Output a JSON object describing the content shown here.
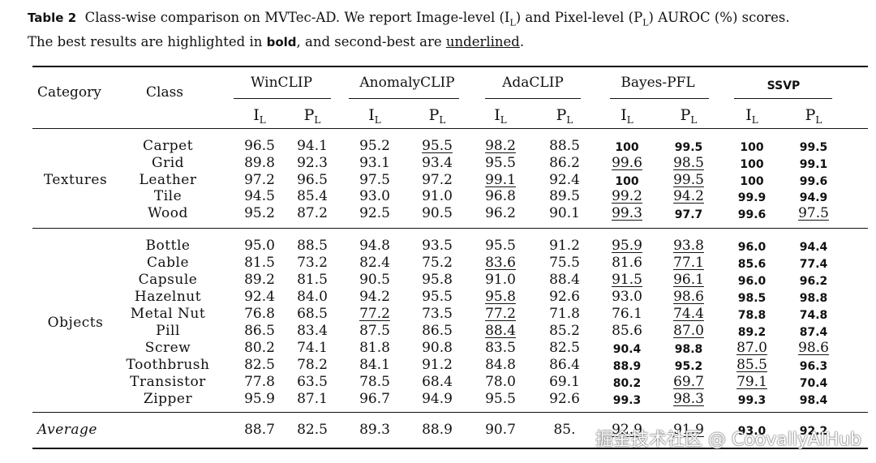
{
  "caption": {
    "label": "Table 2",
    "text_a": "Class-wise comparison on MVTec-AD. We report Image-level (I",
    "sub_l": "L",
    "text_b": ") and Pixel-level (P",
    "text_c": ") AUROC (%) scores.",
    "text_d": "The best results are highlighted in ",
    "bold_word": "bold",
    "text_e": ", and second-best are ",
    "underline_word": "underlined",
    "text_f": "."
  },
  "table": {
    "header_category": "Category",
    "header_class": "Class",
    "methods": [
      {
        "name": "WinCLIP",
        "bold": false
      },
      {
        "name": "AnomalyCLIP",
        "bold": false
      },
      {
        "name": "AdaCLIP",
        "bold": false
      },
      {
        "name": "Bayes-PFL",
        "bold": false
      },
      {
        "name": "SSVP",
        "bold": true
      }
    ],
    "sub_i": "I",
    "sub_p": "P",
    "sub_l": "L",
    "categories": [
      {
        "name": "Textures",
        "rows": [
          {
            "cls": "Carpet",
            "v": [
              [
                "96.5",
                ""
              ],
              [
                "94.1",
                ""
              ],
              [
                "95.2",
                ""
              ],
              [
                "95.5",
                "u"
              ],
              [
                "98.2",
                "u"
              ],
              [
                "88.5",
                ""
              ],
              [
                "100",
                "b"
              ],
              [
                "99.5",
                "b"
              ],
              [
                "100",
                "b"
              ],
              [
                "99.5",
                "b"
              ]
            ]
          },
          {
            "cls": "Grid",
            "v": [
              [
                "89.8",
                ""
              ],
              [
                "92.3",
                ""
              ],
              [
                "93.1",
                ""
              ],
              [
                "93.4",
                ""
              ],
              [
                "95.5",
                ""
              ],
              [
                "86.2",
                ""
              ],
              [
                "99.6",
                "u"
              ],
              [
                "98.5",
                "u"
              ],
              [
                "100",
                "b"
              ],
              [
                "99.1",
                "b"
              ]
            ]
          },
          {
            "cls": "Leather",
            "v": [
              [
                "97.2",
                ""
              ],
              [
                "96.5",
                ""
              ],
              [
                "97.5",
                ""
              ],
              [
                "97.2",
                ""
              ],
              [
                "99.1",
                "u"
              ],
              [
                "92.4",
                ""
              ],
              [
                "100",
                "b"
              ],
              [
                "99.5",
                "u"
              ],
              [
                "100",
                "b"
              ],
              [
                "99.6",
                "b"
              ]
            ]
          },
          {
            "cls": "Tile",
            "v": [
              [
                "94.5",
                ""
              ],
              [
                "85.4",
                ""
              ],
              [
                "93.0",
                ""
              ],
              [
                "91.0",
                ""
              ],
              [
                "96.8",
                ""
              ],
              [
                "89.5",
                ""
              ],
              [
                "99.2",
                "u"
              ],
              [
                "94.2",
                "u"
              ],
              [
                "99.9",
                "b"
              ],
              [
                "94.9",
                "b"
              ]
            ]
          },
          {
            "cls": "Wood",
            "v": [
              [
                "95.2",
                ""
              ],
              [
                "87.2",
                ""
              ],
              [
                "92.5",
                ""
              ],
              [
                "90.5",
                ""
              ],
              [
                "96.2",
                ""
              ],
              [
                "90.1",
                ""
              ],
              [
                "99.3",
                "u"
              ],
              [
                "97.7",
                "b"
              ],
              [
                "99.6",
                "b"
              ],
              [
                "97.5",
                "u"
              ]
            ]
          }
        ]
      },
      {
        "name": "Objects",
        "rows": [
          {
            "cls": "Bottle",
            "v": [
              [
                "95.0",
                ""
              ],
              [
                "88.5",
                ""
              ],
              [
                "94.8",
                ""
              ],
              [
                "93.5",
                ""
              ],
              [
                "95.5",
                ""
              ],
              [
                "91.2",
                ""
              ],
              [
                "95.9",
                "u"
              ],
              [
                "93.8",
                "u"
              ],
              [
                "96.0",
                "b"
              ],
              [
                "94.4",
                "b"
              ]
            ]
          },
          {
            "cls": "Cable",
            "v": [
              [
                "81.5",
                ""
              ],
              [
                "73.2",
                ""
              ],
              [
                "82.4",
                ""
              ],
              [
                "75.2",
                ""
              ],
              [
                "83.6",
                "u"
              ],
              [
                "75.5",
                ""
              ],
              [
                "81.6",
                ""
              ],
              [
                "77.1",
                "u"
              ],
              [
                "85.6",
                "b"
              ],
              [
                "77.4",
                "b"
              ]
            ]
          },
          {
            "cls": "Capsule",
            "v": [
              [
                "89.2",
                ""
              ],
              [
                "81.5",
                ""
              ],
              [
                "90.5",
                ""
              ],
              [
                "95.8",
                ""
              ],
              [
                "91.0",
                ""
              ],
              [
                "88.4",
                ""
              ],
              [
                "91.5",
                "u"
              ],
              [
                "96.1",
                "u"
              ],
              [
                "96.0",
                "b"
              ],
              [
                "96.2",
                "b"
              ]
            ]
          },
          {
            "cls": "Hazelnut",
            "v": [
              [
                "92.4",
                ""
              ],
              [
                "84.0",
                ""
              ],
              [
                "94.2",
                ""
              ],
              [
                "95.5",
                ""
              ],
              [
                "95.8",
                "u"
              ],
              [
                "92.6",
                ""
              ],
              [
                "93.0",
                ""
              ],
              [
                "98.6",
                "u"
              ],
              [
                "98.5",
                "b"
              ],
              [
                "98.8",
                "b"
              ]
            ]
          },
          {
            "cls": "Metal Nut",
            "v": [
              [
                "76.8",
                ""
              ],
              [
                "68.5",
                ""
              ],
              [
                "77.2",
                "u"
              ],
              [
                "73.5",
                ""
              ],
              [
                "77.2",
                "u"
              ],
              [
                "71.8",
                ""
              ],
              [
                "76.1",
                ""
              ],
              [
                "74.4",
                "u"
              ],
              [
                "78.8",
                "b"
              ],
              [
                "74.8",
                "b"
              ]
            ]
          },
          {
            "cls": "Pill",
            "v": [
              [
                "86.5",
                ""
              ],
              [
                "83.4",
                ""
              ],
              [
                "87.5",
                ""
              ],
              [
                "86.5",
                ""
              ],
              [
                "88.4",
                "u"
              ],
              [
                "85.2",
                ""
              ],
              [
                "85.6",
                ""
              ],
              [
                "87.0",
                "u"
              ],
              [
                "89.2",
                "b"
              ],
              [
                "87.4",
                "b"
              ]
            ]
          },
          {
            "cls": "Screw",
            "v": [
              [
                "80.2",
                ""
              ],
              [
                "74.1",
                ""
              ],
              [
                "81.8",
                ""
              ],
              [
                "90.8",
                ""
              ],
              [
                "83.5",
                ""
              ],
              [
                "82.5",
                ""
              ],
              [
                "90.4",
                "b"
              ],
              [
                "98.8",
                "b"
              ],
              [
                "87.0",
                "u"
              ],
              [
                "98.6",
                "u"
              ]
            ]
          },
          {
            "cls": "Toothbrush",
            "v": [
              [
                "82.5",
                ""
              ],
              [
                "78.2",
                ""
              ],
              [
                "84.1",
                ""
              ],
              [
                "91.2",
                ""
              ],
              [
                "84.8",
                ""
              ],
              [
                "86.4",
                ""
              ],
              [
                "88.9",
                "b"
              ],
              [
                "95.2",
                "b"
              ],
              [
                "85.5",
                "u"
              ],
              [
                "96.3",
                "b"
              ]
            ]
          },
          {
            "cls": "Transistor",
            "v": [
              [
                "77.8",
                ""
              ],
              [
                "63.5",
                ""
              ],
              [
                "78.5",
                ""
              ],
              [
                "68.4",
                ""
              ],
              [
                "78.0",
                ""
              ],
              [
                "69.1",
                ""
              ],
              [
                "80.2",
                "b"
              ],
              [
                "69.7",
                "u"
              ],
              [
                "79.1",
                "u"
              ],
              [
                "70.4",
                "b"
              ]
            ]
          },
          {
            "cls": "Zipper",
            "v": [
              [
                "95.9",
                ""
              ],
              [
                "87.1",
                ""
              ],
              [
                "96.7",
                ""
              ],
              [
                "94.9",
                ""
              ],
              [
                "95.5",
                ""
              ],
              [
                "92.6",
                ""
              ],
              [
                "99.3",
                "b"
              ],
              [
                "98.3",
                "u"
              ],
              [
                "99.3",
                "b"
              ],
              [
                "98.4",
                "b"
              ]
            ]
          }
        ]
      }
    ],
    "average": {
      "label": "Average",
      "v": [
        [
          "88.7",
          ""
        ],
        [
          "82.5",
          ""
        ],
        [
          "89.3",
          ""
        ],
        [
          "88.9",
          ""
        ],
        [
          "90.7",
          ""
        ],
        [
          "85.",
          ""
        ],
        [
          "92.9",
          "u"
        ],
        [
          "91.9",
          "u"
        ],
        [
          "93.0",
          "b"
        ],
        [
          "92.2",
          "b"
        ]
      ]
    }
  },
  "watermark": "掘金技术社区 @ CoovallyAIHub"
}
